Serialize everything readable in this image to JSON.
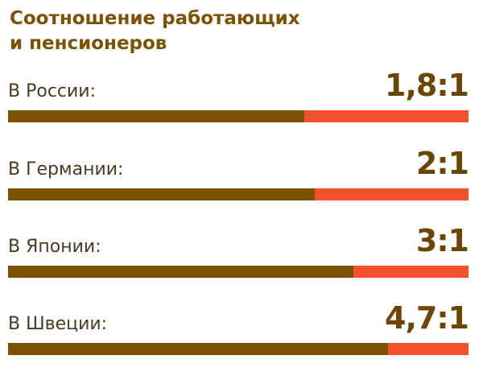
{
  "chart_data": {
    "type": "bar",
    "title": "Соотношение работающих и пенсионеров",
    "title_lines": [
      "Соотношение работающих",
      "и пенсионеров"
    ],
    "categories": [
      "В России:",
      "В Германии:",
      "В Японии:",
      "В Швеции:"
    ],
    "ratio_labels": [
      "1,8:1",
      "2:1",
      "3:1",
      "4,7:1"
    ],
    "values": [
      1.8,
      2,
      3,
      4.7
    ],
    "colors": {
      "workers": "#7a5200",
      "pensioners": "#f4512c",
      "title": "#7a5200"
    }
  }
}
